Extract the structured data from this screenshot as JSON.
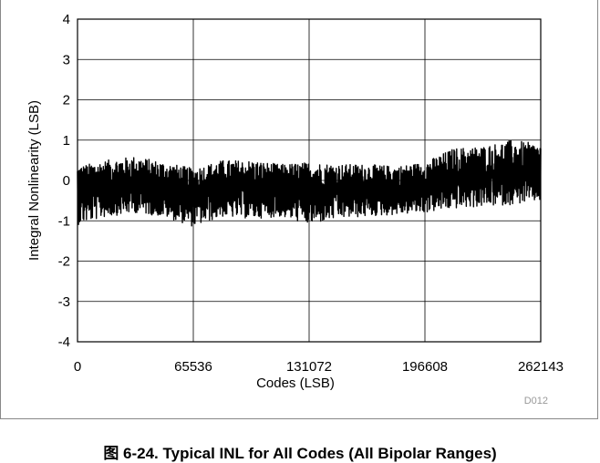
{
  "chart_data": {
    "type": "line",
    "title": "",
    "xlabel": "Codes (LSB)",
    "ylabel": "Integral Nonlinearity (LSB)",
    "xlim": [
      0,
      262143
    ],
    "ylim": [
      -4,
      4
    ],
    "x_ticks": [
      0,
      65536,
      131072,
      196608,
      262143
    ],
    "y_ticks": [
      4,
      3,
      2,
      1,
      0,
      -1,
      -2,
      -3,
      -4
    ],
    "grid": true,
    "legend": "none",
    "series": [
      {
        "color": "#000000",
        "envelope_x": [
          0,
          16384,
          32768,
          49152,
          65536,
          81920,
          98304,
          114688,
          131072,
          147456,
          163840,
          180224,
          196608,
          212992,
          229376,
          245760,
          262143
        ],
        "envelope_max": [
          0.35,
          0.5,
          0.6,
          0.45,
          0.3,
          0.5,
          0.5,
          0.4,
          0.45,
          0.4,
          0.4,
          0.35,
          0.45,
          0.8,
          0.85,
          1.0,
          0.9
        ],
        "envelope_min": [
          -1.1,
          -0.9,
          -0.8,
          -0.9,
          -1.15,
          -0.9,
          -0.95,
          -0.9,
          -1.1,
          -0.95,
          -0.9,
          -0.85,
          -0.8,
          -0.7,
          -0.65,
          -0.6,
          -0.5
        ],
        "envelope_mean": [
          -0.2,
          -0.15,
          -0.1,
          -0.2,
          -0.3,
          -0.15,
          -0.2,
          -0.2,
          -0.25,
          -0.2,
          -0.2,
          -0.2,
          -0.1,
          0.05,
          0.1,
          0.15,
          0.1
        ]
      }
    ]
  },
  "figure": {
    "id_code": "D012",
    "caption": "图 6-24. Typical INL for All Codes (All Bipolar Ranges)"
  },
  "colors": {
    "trace": "#000000",
    "grid": "#000000",
    "code_tag": "#999999"
  }
}
